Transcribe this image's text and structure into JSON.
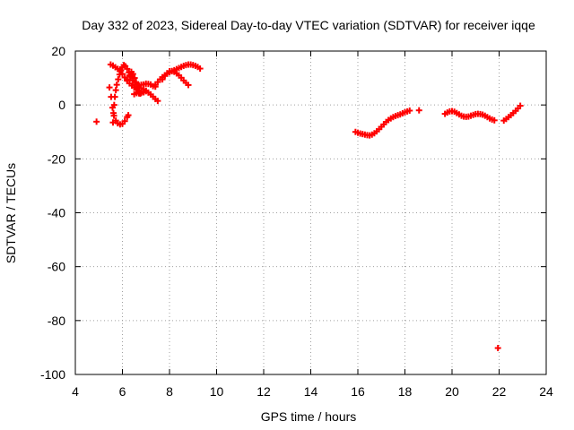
{
  "chart_data": {
    "type": "scatter",
    "title": "Day 332 of 2023, Sidereal Day-to-day VTEC variation (SDTVAR) for receiver iqqe",
    "xlabel": "GPS time / hours",
    "ylabel": "SDTVAR / TECUs",
    "xlim": [
      4,
      24
    ],
    "ylim": [
      -100,
      20
    ],
    "xticks": [
      4,
      6,
      8,
      10,
      12,
      14,
      16,
      18,
      20,
      22,
      24
    ],
    "yticks": [
      -100,
      -80,
      -60,
      -40,
      -20,
      0,
      20
    ],
    "grid": true,
    "marker": "+",
    "color": "#ff0000",
    "series": [
      {
        "name": "sdtvar",
        "points": [
          [
            4.9,
            -6.2
          ],
          [
            5.5,
            15.0
          ],
          [
            5.6,
            14.6
          ],
          [
            5.7,
            14.0
          ],
          [
            5.8,
            13.4
          ],
          [
            5.9,
            12.5
          ],
          [
            6.0,
            11.5
          ],
          [
            6.1,
            10.2
          ],
          [
            6.2,
            9.0
          ],
          [
            6.3,
            8.0
          ],
          [
            6.4,
            7.2
          ],
          [
            6.5,
            6.5
          ],
          [
            6.6,
            5.9
          ],
          [
            6.7,
            5.4
          ],
          [
            6.8,
            5.0
          ],
          [
            6.9,
            4.7
          ],
          [
            5.6,
            -6.5
          ],
          [
            5.62,
            -3.0
          ],
          [
            5.65,
            0.0
          ],
          [
            5.68,
            3.0
          ],
          [
            5.72,
            5.5
          ],
          [
            5.76,
            7.5
          ],
          [
            5.82,
            9.5
          ],
          [
            5.88,
            11.3
          ],
          [
            5.94,
            12.8
          ],
          [
            6.0,
            14.0
          ],
          [
            6.06,
            14.8
          ],
          [
            6.12,
            14.4
          ],
          [
            6.2,
            13.4
          ],
          [
            6.28,
            12.0
          ],
          [
            6.36,
            10.5
          ],
          [
            6.44,
            9.0
          ],
          [
            6.52,
            7.5
          ],
          [
            6.6,
            6.2
          ],
          [
            6.68,
            5.0
          ],
          [
            6.76,
            4.2
          ],
          [
            5.45,
            6.5
          ],
          [
            5.52,
            3.0
          ],
          [
            5.58,
            -1.0
          ],
          [
            5.64,
            -4.0
          ],
          [
            5.72,
            -5.8
          ],
          [
            5.8,
            -6.8
          ],
          [
            5.9,
            -7.2
          ],
          [
            6.0,
            -7.0
          ],
          [
            6.1,
            -6.0
          ],
          [
            6.2,
            -4.5
          ],
          [
            6.25,
            -3.8
          ],
          [
            6.2,
            9.5
          ],
          [
            6.3,
            11.0
          ],
          [
            6.38,
            12.3
          ],
          [
            6.45,
            11.5
          ],
          [
            6.52,
            10.0
          ],
          [
            6.58,
            8.5
          ],
          [
            6.64,
            7.5
          ],
          [
            6.7,
            6.8
          ],
          [
            6.8,
            6.2
          ],
          [
            6.9,
            5.8
          ],
          [
            7.0,
            5.3
          ],
          [
            7.1,
            4.6
          ],
          [
            7.2,
            3.9
          ],
          [
            7.3,
            3.1
          ],
          [
            7.4,
            2.2
          ],
          [
            7.5,
            1.5
          ],
          [
            6.5,
            4.0
          ],
          [
            6.6,
            5.8
          ],
          [
            6.7,
            7.2
          ],
          [
            6.8,
            7.5
          ],
          [
            6.9,
            7.6
          ],
          [
            7.0,
            7.9
          ],
          [
            7.1,
            7.8
          ],
          [
            7.2,
            7.6
          ],
          [
            7.3,
            7.0
          ],
          [
            7.4,
            6.8
          ],
          [
            6.6,
            4.4
          ],
          [
            6.7,
            4.3
          ],
          [
            6.8,
            4.5
          ],
          [
            6.9,
            4.8
          ],
          [
            7.0,
            5.1
          ],
          [
            7.4,
            7.5
          ],
          [
            7.5,
            8.5
          ],
          [
            7.6,
            9.5
          ],
          [
            7.7,
            10.3
          ],
          [
            7.8,
            11.0
          ],
          [
            7.9,
            11.6
          ],
          [
            8.0,
            12.1
          ],
          [
            8.1,
            12.5
          ],
          [
            8.2,
            12.9
          ],
          [
            8.3,
            13.3
          ],
          [
            8.4,
            13.7
          ],
          [
            8.5,
            14.1
          ],
          [
            8.6,
            14.5
          ],
          [
            8.7,
            14.8
          ],
          [
            8.8,
            15.0
          ],
          [
            8.9,
            15.0
          ],
          [
            9.0,
            14.8
          ],
          [
            9.1,
            14.5
          ],
          [
            9.2,
            14.1
          ],
          [
            9.3,
            13.5
          ],
          [
            7.7,
            9.5
          ],
          [
            7.8,
            10.8
          ],
          [
            7.9,
            11.8
          ],
          [
            8.0,
            12.5
          ],
          [
            8.1,
            12.6
          ],
          [
            8.2,
            12.3
          ],
          [
            8.3,
            11.7
          ],
          [
            8.4,
            11.0
          ],
          [
            8.5,
            10.1
          ],
          [
            8.6,
            9.1
          ],
          [
            8.7,
            8.2
          ],
          [
            8.8,
            7.4
          ],
          [
            15.9,
            -10.0
          ],
          [
            16.0,
            -10.3
          ],
          [
            16.1,
            -10.6
          ],
          [
            16.2,
            -10.8
          ],
          [
            16.3,
            -11.0
          ],
          [
            16.4,
            -11.2
          ],
          [
            16.5,
            -11.3
          ],
          [
            16.6,
            -11.0
          ],
          [
            16.7,
            -10.5
          ],
          [
            16.8,
            -9.8
          ],
          [
            16.9,
            -9.0
          ],
          [
            17.0,
            -8.1
          ],
          [
            17.1,
            -7.2
          ],
          [
            17.2,
            -6.3
          ],
          [
            17.3,
            -5.6
          ],
          [
            17.4,
            -5.0
          ],
          [
            17.5,
            -4.5
          ],
          [
            17.6,
            -4.1
          ],
          [
            17.7,
            -3.8
          ],
          [
            17.8,
            -3.5
          ],
          [
            17.9,
            -3.1
          ],
          [
            18.0,
            -2.7
          ],
          [
            18.1,
            -2.4
          ],
          [
            18.2,
            -2.1
          ],
          [
            18.6,
            -2.0
          ],
          [
            19.7,
            -3.3
          ],
          [
            19.8,
            -2.8
          ],
          [
            19.9,
            -2.4
          ],
          [
            20.0,
            -2.3
          ],
          [
            20.1,
            -2.5
          ],
          [
            20.2,
            -3.0
          ],
          [
            20.3,
            -3.5
          ],
          [
            20.4,
            -4.0
          ],
          [
            20.5,
            -4.3
          ],
          [
            20.6,
            -4.4
          ],
          [
            20.7,
            -4.3
          ],
          [
            20.8,
            -4.0
          ],
          [
            20.9,
            -3.7
          ],
          [
            21.0,
            -3.4
          ],
          [
            21.1,
            -3.3
          ],
          [
            21.2,
            -3.4
          ],
          [
            21.3,
            -3.6
          ],
          [
            21.4,
            -4.0
          ],
          [
            21.5,
            -4.5
          ],
          [
            21.6,
            -5.0
          ],
          [
            21.7,
            -5.4
          ],
          [
            21.8,
            -5.7
          ],
          [
            22.2,
            -5.8
          ],
          [
            22.3,
            -5.2
          ],
          [
            22.4,
            -4.5
          ],
          [
            22.5,
            -3.8
          ],
          [
            22.6,
            -3.0
          ],
          [
            22.7,
            -2.2
          ],
          [
            22.8,
            -1.3
          ],
          [
            22.9,
            -0.3
          ],
          [
            21.95,
            -90.2
          ]
        ]
      }
    ]
  }
}
